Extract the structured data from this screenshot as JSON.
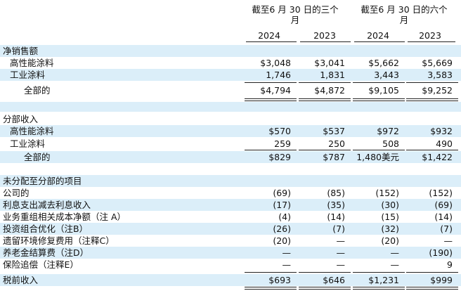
{
  "header": {
    "three_months": "截至6 月 30 日的三个\n月",
    "six_months": "截至6 月 30 日的六个\n月",
    "years": [
      "2024",
      "2023",
      "2024",
      "2023"
    ]
  },
  "net_sales": {
    "title": "净销售额",
    "rows": [
      {
        "label": "高性能涂料",
        "values": [
          "$3,048",
          "$3,041",
          "$5,662",
          "$5,669"
        ]
      },
      {
        "label": "工业涂料",
        "values": [
          "1,746",
          "1,831",
          "3,443",
          "3,583"
        ]
      }
    ],
    "total": {
      "label": "全部的",
      "values": [
        "$4,794",
        "$4,872",
        "$9,105",
        "$9,252"
      ]
    }
  },
  "segment_income": {
    "title": "分部收入",
    "rows": [
      {
        "label": "高性能涂料",
        "values": [
          "$570",
          "$537",
          "$972",
          "$932"
        ]
      },
      {
        "label": "工业涂料",
        "values": [
          "259",
          "250",
          "508",
          "490"
        ]
      }
    ],
    "total": {
      "label": "全部的",
      "values": [
        "$829",
        "$787",
        "1,480美元",
        "$1,422"
      ]
    }
  },
  "unallocated": {
    "title": "未分配至分部的项目",
    "rows": [
      {
        "label": "公司的",
        "values": [
          "(69)",
          "(85)",
          "(152)",
          "(152)"
        ]
      },
      {
        "label": "利息支出减去利息收入",
        "values": [
          "(17)",
          "(35)",
          "(30)",
          "(69)"
        ]
      },
      {
        "label": "业务重组相关成本净额（注 A）",
        "values": [
          "(4)",
          "(14)",
          "(15)",
          "(14)"
        ]
      },
      {
        "label": "投资组合优化（注B）",
        "values": [
          "(26)",
          "(7)",
          "(32)",
          "(7)"
        ]
      },
      {
        "label": "遗留环境修复费用（注释C）",
        "values": [
          "(20)",
          "—",
          "(20)",
          "—"
        ]
      },
      {
        "label": "养老金结算费（注D）",
        "values": [
          "—",
          "—",
          "—",
          "(190)"
        ]
      },
      {
        "label": "保险追偿（注释E）",
        "values": [
          "—",
          "—",
          "—",
          "9"
        ]
      }
    ]
  },
  "pretax": {
    "label": "税前收入",
    "values": [
      "$693",
      "$646",
      "$1,231",
      "$999"
    ]
  }
}
